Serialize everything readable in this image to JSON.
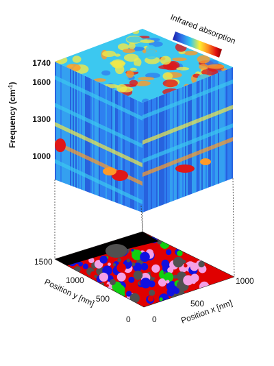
{
  "colorbar": {
    "label": "Infrared absorption",
    "colors": [
      "#1a1aa8",
      "#2f6fe8",
      "#30c8f0",
      "#ffee30",
      "#ff8a20",
      "#e01010",
      "#8a0000"
    ]
  },
  "axes": {
    "frequency": {
      "title": "Frequency (cm",
      "title_sup": "-1",
      "title_close": ")",
      "ticks": [
        "1740",
        "1600",
        "1300",
        "1000"
      ]
    },
    "position_x": {
      "title": "Position x [nm]",
      "ticks": [
        "0",
        "500",
        "1000"
      ]
    },
    "position_y": {
      "title": "Position y [nm]",
      "ticks": [
        "0",
        "500",
        "1000",
        "1500"
      ]
    }
  },
  "cube_colors": {
    "deep_blue": "#1f3fc8",
    "blue": "#2f80f0",
    "cyan": "#3cc8f0",
    "yellow": "#f0e84a",
    "orange": "#ff9a28",
    "red": "#e01818"
  },
  "map_colors": {
    "red": "#e00000",
    "blue": "#1010e0",
    "green": "#10d010",
    "pink": "#f4a0e6",
    "gray": "#505050",
    "black": "#000000"
  }
}
